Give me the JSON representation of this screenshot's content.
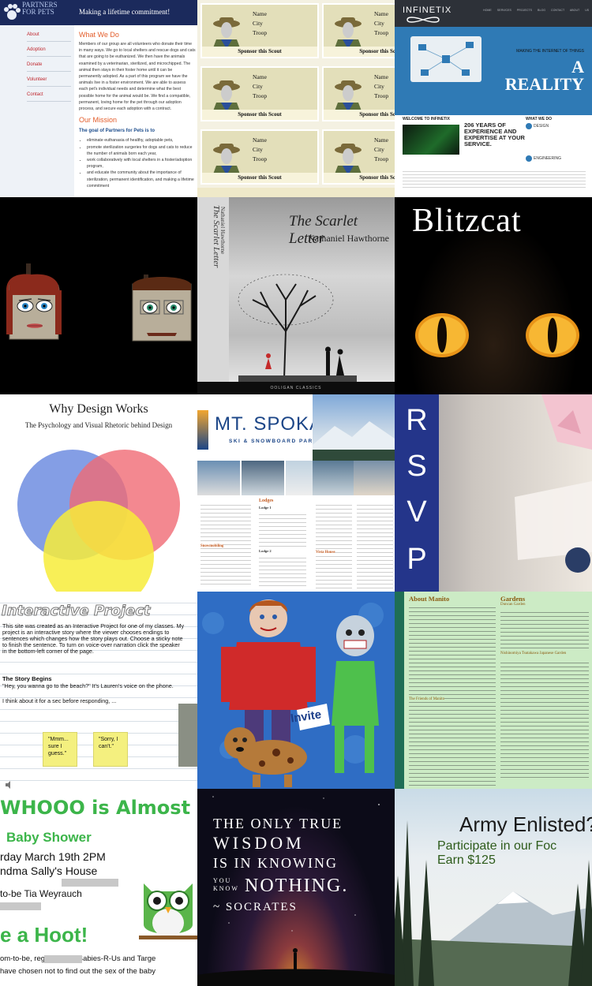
{
  "colors": {
    "pets_navy": "#1b2a5c",
    "pets_red": "#c0272d",
    "infinetix_blue": "#2f7ab5",
    "rsvp_blue": "#24358a",
    "shower_green": "#3cb54a",
    "spokane_blue": "#1b4587"
  },
  "pets": {
    "logo_line1": "PARTNERS",
    "logo_line2": "FOR PETS",
    "tagline": "Making a lifetime commitment!",
    "nav": [
      "About",
      "Adoption",
      "Donate",
      "Volunteer",
      "Contact"
    ],
    "what_heading": "What We Do",
    "what_text": "Members of our group are all volunteers who donate their time in many ways. We go to local shelters and rescue dogs and cats that are going to be euthanized. We then have the animals examined by a veterinarian, sterilized, and microchipped. The animal then stays in their foster home until it can be permanently adopted. As a part of this program we have the animals live in a foster environment. We are able to assess each pet's individual needs and determine what the best possible home for the animal would be. We find a compatible, permanent, loving home for the pet through our adoption process, and secure each adoption with a contract.",
    "mission_heading": "Our Mission",
    "goal_heading": "The goal of Partners for Pets is to",
    "goals": [
      "eliminate euthanasia of healthy, adoptable pets,",
      "promote sterilization surgeries for dogs and cats to reduce the number of animals born each year,",
      "work collaboratively with local shelters in a foster/adoption program,",
      "and educate the community about the importance of sterilization, permanent identification, and making a lifetime commitment"
    ]
  },
  "scout": {
    "name": "Name",
    "city": "City",
    "troop": "Troop",
    "sponsor": "Sponsor this Scout"
  },
  "infinetix": {
    "brand": "INFINETIX",
    "menu": "HOME SERVICES PROJECTS BLOG CONTACT ABOUT US",
    "hero_small": "MAKING THE INTERNET OF THINGS",
    "hero_a": "A",
    "hero_reality": "REALITY",
    "welcome": "WELCOME TO INFINETIX",
    "years": "206 YEARS OF EXPERIENCE AND EXPERTISE AT YOUR SERVICE.",
    "what_we_do": "WHAT WE DO",
    "design": "DESIGN",
    "engineering": "ENGINEERING"
  },
  "scarlet": {
    "title": "The Scarlet Letter",
    "author": "Nathaniel Hawthorne",
    "spine_title": "The Scarlet Letter",
    "spine_author": "Nathaniel Hawthorne",
    "publisher": "OOLIGAN CLASSICS"
  },
  "blitzcat": {
    "title": "Blitzcat"
  },
  "design": {
    "title": "Why Design Works",
    "subtitle": "The Psychology and Visual Rhetoric behind Design"
  },
  "spokane": {
    "title": "MT. SPOKANE",
    "subtitle": "SKI & SNOWBOARD PARK",
    "lodges": "Lodges",
    "lodge1": "Lodge 1",
    "lodge2": "Lodge 2",
    "snowmobiling": "Snowmobiling",
    "vista": "Vista House"
  },
  "rsvp": {
    "letters": [
      "R",
      "S",
      "V",
      "P"
    ]
  },
  "interactive": {
    "title": "Interactive Project",
    "body": "This site was created as an Interactive Project for one of my classes.  My project is an interactive story where the viewer chooses endings to sentences which changes how the story plays out.  Choose a sticky note to finish the sentence.  To turn on voice-over narration click the speaker in the bottom-left corner of the page.",
    "story_begins": "The Story Begins",
    "quote": "\"Hey, you wanna go to the beach?\"  It's Lauren's voice on the phone.",
    "think": "I think about it for a sec before responding, ...",
    "note1": "\"Mmm... sure I guess.\"",
    "note2": "\"Sorry, I can't.\""
  },
  "invite": {
    "label": "Invite"
  },
  "manito": {
    "about": "About Manito",
    "gardens": "Gardens",
    "dunconi": "Duncan Garden",
    "nishinomiya": "Nishinomiya Tsutakawa Japanese Garden",
    "friends": "The Friends of Manito"
  },
  "shower": {
    "headline": "WHOOO is Almost Due!",
    "event": "Baby Shower",
    "date": "rday March 19th 2PM",
    "location": "ndma Sally's House",
    "mom": "to-be Tia Weyrauch",
    "hoot": "e a Hoot!",
    "registered": "om-to-be,                    registered at Babies-R-Us and Targe",
    "sex": "have chosen not to find out the sex of the baby"
  },
  "wisdom": {
    "line1": "THE ONLY TRUE",
    "line2": "WISDOM",
    "line3": "IS IN KNOWING",
    "line4": "YOU KNOW",
    "nothing": "NOTHING.",
    "socrates": "~ SOCRATES"
  },
  "army": {
    "title": "Army Enlisted?",
    "sub": "Participate in our Foc",
    "earn": "Earn $125"
  }
}
